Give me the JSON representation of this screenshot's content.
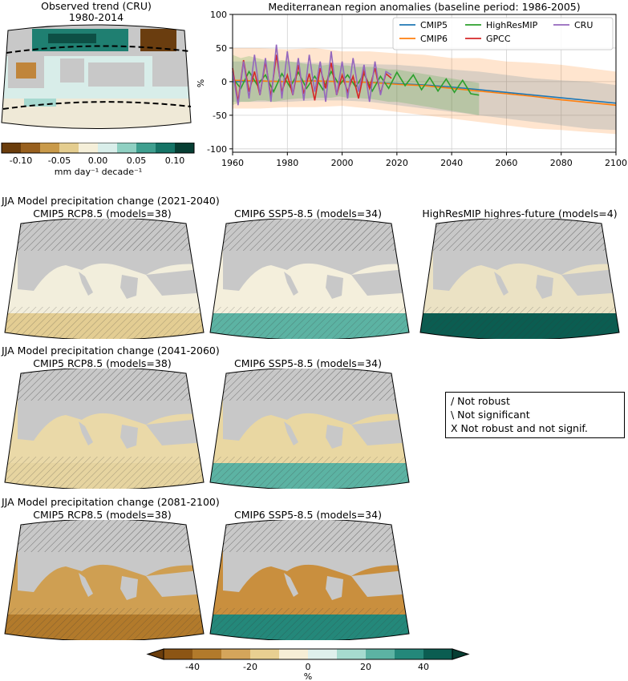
{
  "obs": {
    "title_line1": "Observed trend (CRU)",
    "title_line2": "1980-2014",
    "cbar_ticks": [
      "-0.10",
      "-0.05",
      "0.00",
      "0.05",
      "0.10"
    ],
    "cbar_label": "mm day⁻¹ decade⁻¹"
  },
  "sections": {
    "s1": "JJA Model precipitation change (2021-2040)",
    "s2": "JJA Model precipitation change (2041-2060)",
    "s3": "JJA Model precipitation change (2081-2100)"
  },
  "maps": {
    "cmip5": "CMIP5 RCP8.5 (models=38)",
    "cmip6": "CMIP6 SSP5-8.5 (models=34)",
    "highres": "HighResMIP highres-future (models=4)"
  },
  "legend_box": {
    "line1": "/ Not robust",
    "line2": "\\ Not significant",
    "line3": "X Not robust and not signif."
  },
  "bottom_cbar": {
    "ticks": [
      "-40",
      "-20",
      "0",
      "20",
      "40"
    ],
    "label": "%"
  },
  "colors": {
    "cmip5": "#1f77b4",
    "cmip6": "#ff7f0e",
    "highresmip": "#2ca02c",
    "gpcc": "#d62728",
    "cru": "#9467bd",
    "land": "#c8c8c8"
  },
  "chart_data": {
    "type": "line",
    "title": "Mediterranean region anomalies (baseline period: 1986-2005)",
    "xlabel": "",
    "ylabel": "%",
    "xlim": [
      1960,
      2100
    ],
    "ylim": [
      -105,
      100
    ],
    "xticks": [
      1960,
      1980,
      2000,
      2020,
      2040,
      2060,
      2080,
      2100
    ],
    "yticks": [
      -100,
      -50,
      0,
      50,
      100
    ],
    "grid": true,
    "legend_position": "top-right",
    "series": [
      {
        "name": "CMIP5",
        "x": [
          1960,
          1970,
          1980,
          1990,
          2000,
          2010,
          2020,
          2030,
          2040,
          2050,
          2060,
          2070,
          2080,
          2090,
          2100
        ],
        "values": [
          0,
          1,
          0,
          1,
          0,
          -1,
          -3,
          -5,
          -8,
          -12,
          -16,
          -20,
          -24,
          -28,
          -32
        ],
        "band": [
          [
            -30,
            30
          ],
          [
            -30,
            30
          ],
          [
            -30,
            30
          ],
          [
            -28,
            28
          ],
          [
            -28,
            28
          ],
          [
            -30,
            26
          ],
          [
            -35,
            25
          ],
          [
            -40,
            22
          ],
          [
            -45,
            18
          ],
          [
            -50,
            15
          ],
          [
            -55,
            10
          ],
          [
            -60,
            5
          ],
          [
            -65,
            2
          ],
          [
            -70,
            0
          ],
          [
            -72,
            -5
          ]
        ]
      },
      {
        "name": "CMIP6",
        "x": [
          1960,
          1970,
          1980,
          1990,
          2000,
          2010,
          2020,
          2030,
          2040,
          2050,
          2060,
          2070,
          2080,
          2090,
          2100
        ],
        "values": [
          2,
          1,
          0,
          1,
          0,
          -1,
          -4,
          -6,
          -10,
          -14,
          -18,
          -22,
          -27,
          -31,
          -35
        ],
        "band": [
          [
            -40,
            50
          ],
          [
            -40,
            50
          ],
          [
            -38,
            48
          ],
          [
            -38,
            50
          ],
          [
            -36,
            45
          ],
          [
            -40,
            45
          ],
          [
            -45,
            42
          ],
          [
            -50,
            40
          ],
          [
            -55,
            35
          ],
          [
            -60,
            35
          ],
          [
            -65,
            30
          ],
          [
            -70,
            28
          ],
          [
            -72,
            25
          ],
          [
            -75,
            20
          ],
          [
            -78,
            15
          ]
        ]
      },
      {
        "name": "HighResMIP",
        "x": [
          1960,
          1963,
          1966,
          1969,
          1972,
          1975,
          1978,
          1981,
          1984,
          1987,
          1990,
          1993,
          1996,
          1999,
          2002,
          2005,
          2008,
          2011,
          2014,
          2017,
          2020,
          2023,
          2026,
          2029,
          2032,
          2035,
          2038,
          2041,
          2044,
          2047,
          2050
        ],
        "values": [
          5,
          -10,
          15,
          -5,
          10,
          -15,
          12,
          -8,
          14,
          -10,
          8,
          -12,
          15,
          -5,
          10,
          -8,
          12,
          -14,
          8,
          -10,
          14,
          -6,
          10,
          -12,
          6,
          -14,
          4,
          -16,
          2,
          -18,
          -20
        ],
        "band": [
          [
            -35,
            40
          ],
          [
            -30,
            35
          ],
          [
            -30,
            38
          ],
          [
            -28,
            35
          ],
          [
            -28,
            32
          ],
          [
            -30,
            30
          ],
          [
            -28,
            32
          ],
          [
            -26,
            30
          ],
          [
            -25,
            28
          ],
          [
            -25,
            26
          ],
          [
            -24,
            26
          ],
          [
            -24,
            24
          ],
          [
            -24,
            26
          ],
          [
            -22,
            24
          ],
          [
            -24,
            24
          ],
          [
            -24,
            22
          ],
          [
            -25,
            22
          ],
          [
            -26,
            22
          ],
          [
            -28,
            20
          ],
          [
            -30,
            18
          ],
          [
            -30,
            18
          ],
          [
            -32,
            16
          ],
          [
            -34,
            14
          ],
          [
            -36,
            12
          ],
          [
            -38,
            10
          ],
          [
            -40,
            8
          ],
          [
            -42,
            6
          ],
          [
            -44,
            4
          ],
          [
            -46,
            2
          ],
          [
            -48,
            0
          ],
          [
            -50,
            -2
          ]
        ]
      },
      {
        "name": "GPCC",
        "x": [
          1960,
          1962,
          1964,
          1966,
          1968,
          1970,
          1972,
          1974,
          1976,
          1978,
          1980,
          1982,
          1984,
          1986,
          1988,
          1990,
          1992,
          1994,
          1996,
          1998,
          2000,
          2002,
          2004,
          2006,
          2008,
          2010,
          2012,
          2014,
          2016,
          2018
        ],
        "values": [
          20,
          -30,
          32,
          -15,
          15,
          -20,
          30,
          -22,
          40,
          -15,
          10,
          -20,
          25,
          -18,
          12,
          -28,
          20,
          -10,
          28,
          -20,
          10,
          -15,
          8,
          -25,
          15,
          -10,
          20,
          -18,
          12,
          5
        ]
      },
      {
        "name": "CRU",
        "x": [
          1960,
          1962,
          1964,
          1966,
          1968,
          1970,
          1972,
          1974,
          1976,
          1978,
          1980,
          1982,
          1984,
          1986,
          1988,
          1990,
          1992,
          1994,
          1996,
          1998,
          2000,
          2002,
          2004,
          2006,
          2008,
          2010,
          2012,
          2014,
          2016,
          2018
        ],
        "values": [
          15,
          -35,
          30,
          -25,
          40,
          -20,
          35,
          -30,
          55,
          -25,
          45,
          -20,
          35,
          -28,
          40,
          -15,
          30,
          -30,
          45,
          -20,
          30,
          -25,
          35,
          -15,
          25,
          -30,
          30,
          -20,
          15,
          10
        ]
      }
    ]
  }
}
